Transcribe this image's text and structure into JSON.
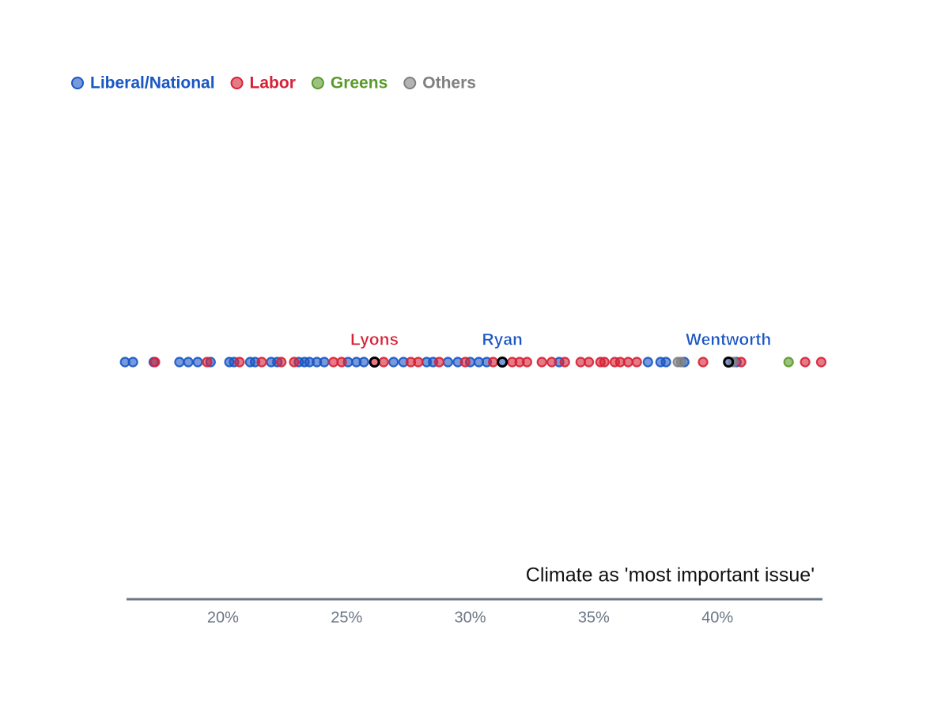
{
  "chart_data": {
    "type": "strip",
    "x_label": "Climate as 'most important issue'",
    "xlim": [
      16.1,
      44.25
    ],
    "xticks": [
      {
        "value": 20,
        "label": "20%"
      },
      {
        "value": 25,
        "label": "25%"
      },
      {
        "value": 30,
        "label": "30%"
      },
      {
        "value": 35,
        "label": "35%"
      },
      {
        "value": 40,
        "label": "40%"
      }
    ],
    "legend": "top-left",
    "series": [
      {
        "name": "Liberal/National",
        "color": "#1a56c4",
        "values": [
          16.04,
          16.36,
          17.2,
          18.24,
          18.6,
          18.98,
          19.5,
          20.26,
          20.45,
          21.1,
          21.3,
          21.95,
          22.2,
          23.07,
          23.3,
          23.5,
          23.8,
          24.1,
          25.06,
          25.4,
          25.7,
          26.9,
          27.3,
          28.24,
          28.5,
          29.1,
          29.5,
          30.0,
          30.35,
          30.67,
          31.3,
          33.6,
          37.19,
          37.7,
          37.92,
          38.66,
          40.45,
          40.77
        ]
      },
      {
        "name": "Labor",
        "color": "#d62236",
        "values": [
          17.25,
          19.36,
          20.67,
          21.57,
          22.36,
          22.88,
          24.47,
          24.8,
          26.13,
          26.5,
          27.6,
          27.9,
          28.75,
          29.8,
          30.93,
          31.7,
          32.0,
          32.3,
          32.9,
          33.3,
          33.83,
          34.47,
          34.8,
          35.27,
          35.43,
          35.85,
          36.07,
          36.39,
          36.74,
          39.42,
          40.96,
          43.55,
          44.2
        ]
      },
      {
        "name": "Greens",
        "color": "#5a9a2a",
        "values": [
          42.88
        ]
      },
      {
        "name": "Others",
        "color": "#808080",
        "values": [
          38.4,
          38.53,
          40.64
        ]
      }
    ],
    "annotations": [
      {
        "label": "Lyons",
        "x": 26.13,
        "color": "#d62236"
      },
      {
        "label": "Ryan",
        "x": 31.3,
        "color": "#1a56c4"
      },
      {
        "label": "Wentworth",
        "x": 40.45,
        "color": "#1a56c4"
      }
    ]
  }
}
